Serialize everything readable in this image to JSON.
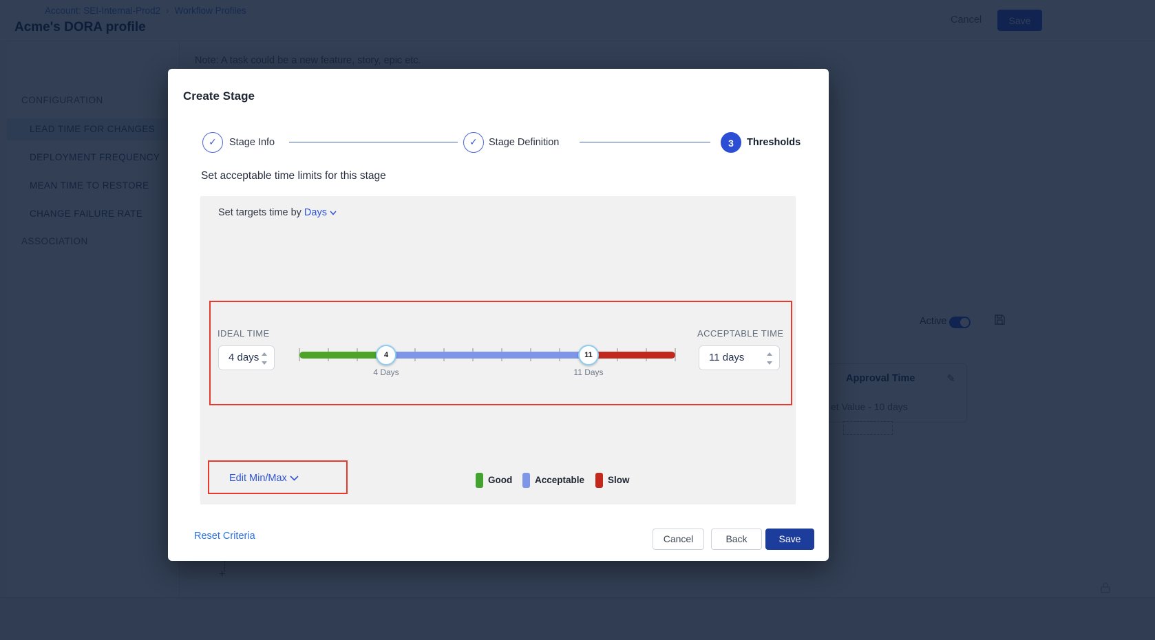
{
  "background": {
    "breadcrumb": {
      "account": "Account: SEI-Internal-Prod2",
      "separator": "›",
      "page": "Workflow Profiles"
    },
    "page_title": "Acme's DORA profile",
    "header": {
      "cancel": "Cancel",
      "save": "Save"
    },
    "sidebar": {
      "configuration_label": "CONFIGURATION",
      "association_label": "ASSOCIATION",
      "items": [
        "LEAD TIME FOR CHANGES",
        "DEPLOYMENT FREQUENCY",
        "MEAN TIME TO RESTORE",
        "CHANGE FAILURE RATE"
      ]
    },
    "note": "Note: A task could be a new feature, story, epic etc.",
    "approval_card": {
      "active_label": "Active",
      "title": "Approval Time",
      "value_text": "et Value - 10 days",
      "pencil": "✎",
      "plus": "+"
    }
  },
  "modal": {
    "title": "Create Stage",
    "steps": {
      "step1": "Stage Info",
      "step2": "Stage Definition",
      "step3": "Thresholds",
      "step3_number": "3",
      "check": "✓"
    },
    "heading": "Set acceptable time limits for this stage",
    "targets": {
      "prefix": "Set targets time by",
      "unit": "Days"
    },
    "ideal": {
      "label": "IDEAL TIME",
      "value": "4 days"
    },
    "acceptable": {
      "label": "ACCEPTABLE TIME",
      "value": "11 days"
    },
    "slider": {
      "handle_low": "4",
      "handle_high": "11",
      "low_caption": "4 Days",
      "high_caption": "11 Days",
      "good_color": "#4da426",
      "acceptable_color": "#7e95e8",
      "slow_color": "#c1291d"
    },
    "edit_minmax": "Edit Min/Max",
    "legend": [
      {
        "label": "Good",
        "color": "#43a32e"
      },
      {
        "label": "Acceptable",
        "color": "#7e95e8"
      },
      {
        "label": "Slow",
        "color": "#c4281c"
      }
    ],
    "reset": "Reset Criteria",
    "footer": {
      "cancel": "Cancel",
      "back": "Back",
      "save": "Save"
    }
  }
}
